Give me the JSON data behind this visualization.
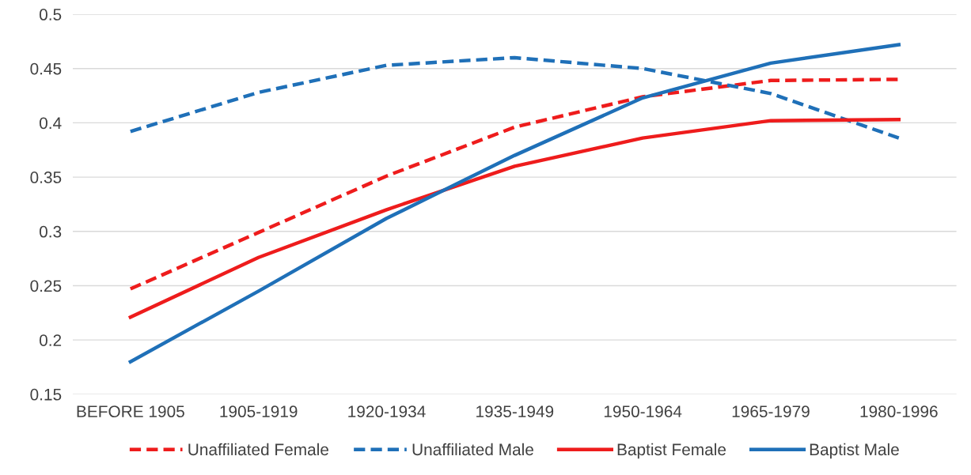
{
  "chart_data": {
    "type": "line",
    "categories": [
      "BEFORE 1905",
      "1905-1919",
      "1920-1934",
      "1935-1949",
      "1950-1964",
      "1965-1979",
      "1980-1996"
    ],
    "series": [
      {
        "name": "Unaffiliated Female",
        "color": "#ee1c1c",
        "line_style": "dashed",
        "values": [
          0.247,
          0.299,
          0.351,
          0.396,
          0.424,
          0.439,
          0.44
        ]
      },
      {
        "name": "Unaffiliated Male",
        "color": "#1f70b8",
        "line_style": "dashed",
        "values": [
          0.392,
          0.428,
          0.453,
          0.46,
          0.45,
          0.427,
          0.386
        ]
      },
      {
        "name": "Baptist Female",
        "color": "#ee1c1c",
        "line_style": "solid",
        "values": [
          0.221,
          0.276,
          0.32,
          0.36,
          0.386,
          0.402,
          0.403
        ]
      },
      {
        "name": "Baptist Male",
        "color": "#1f70b8",
        "line_style": "solid",
        "values": [
          0.18,
          0.245,
          0.312,
          0.37,
          0.423,
          0.455,
          0.472
        ]
      }
    ],
    "ylim": [
      0.15,
      0.5
    ],
    "yticks": [
      0.15,
      0.2,
      0.25,
      0.3,
      0.35,
      0.4,
      0.45,
      0.5
    ],
    "grid": "y",
    "legend": "bottom",
    "marker": "none"
  }
}
